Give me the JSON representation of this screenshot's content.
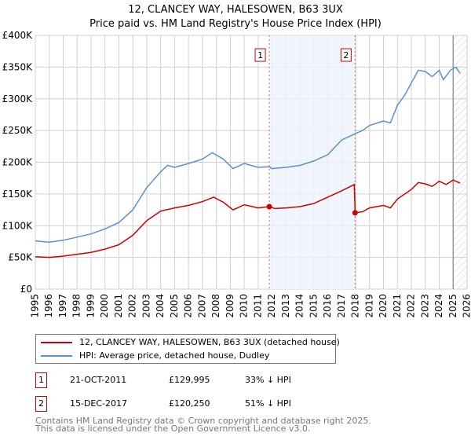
{
  "chart_data": {
    "type": "line",
    "title": "12, CLANCEY WAY, HALESOWEN, B63 3UX",
    "subtitle": "Price paid vs. HM Land Registry's House Price Index (HPI)",
    "xlim": [
      1995,
      2026
    ],
    "ylim": [
      0,
      400000
    ],
    "yticks": [
      0,
      50000,
      100000,
      150000,
      200000,
      250000,
      300000,
      350000,
      400000
    ],
    "ytick_labels": [
      "£0",
      "£50K",
      "£100K",
      "£150K",
      "£200K",
      "£250K",
      "£300K",
      "£350K",
      "£400K"
    ],
    "xticks": [
      1995,
      1996,
      1997,
      1998,
      1999,
      2000,
      2001,
      2002,
      2003,
      2004,
      2005,
      2006,
      2007,
      2008,
      2009,
      2010,
      2011,
      2012,
      2013,
      2014,
      2015,
      2016,
      2017,
      2018,
      2019,
      2020,
      2021,
      2022,
      2023,
      2024,
      2025,
      2026
    ],
    "grid": true,
    "legend_placement": "below",
    "series": [
      {
        "name": "12, CLANCEY WAY, HALESOWEN, B63 3UX (detached house)",
        "color": "#cc0000",
        "x": [
          1995,
          1996,
          1997,
          1998,
          1999,
          2000,
          2001,
          2002,
          2003,
          2004,
          2005,
          2006,
          2007,
          2007.8,
          2008.5,
          2009.2,
          2010,
          2011,
          2011.8,
          2012.2,
          2013,
          2014,
          2015,
          2016,
          2017,
          2017.9,
          2017.96,
          2018.5,
          2019,
          2020,
          2020.5,
          2021,
          2022,
          2022.5,
          2023,
          2023.5,
          2024,
          2024.5,
          2025,
          2025.5
        ],
        "y": [
          51000,
          50000,
          52000,
          55000,
          58000,
          63000,
          70000,
          85000,
          108000,
          123000,
          128000,
          132000,
          138000,
          145000,
          137000,
          125000,
          133000,
          128000,
          129995,
          127000,
          128000,
          130000,
          135000,
          145000,
          155000,
          165000,
          120250,
          122000,
          128000,
          132000,
          128000,
          142000,
          157000,
          168000,
          166000,
          162000,
          170000,
          165000,
          172000,
          167000
        ]
      },
      {
        "name": "HPI: Average price, detached house, Dudley",
        "color": "#5b8fd4",
        "x": [
          1995,
          1996,
          1997,
          1998,
          1999,
          2000,
          2001,
          2002,
          2003,
          2004,
          2004.5,
          2005,
          2006,
          2007,
          2007.7,
          2008.5,
          2009.2,
          2010,
          2011,
          2011.8,
          2012,
          2013,
          2014,
          2015,
          2016,
          2017,
          2017.96,
          2018.5,
          2019,
          2020,
          2020.5,
          2021,
          2021.5,
          2022,
          2022.5,
          2023,
          2023.5,
          2024,
          2024.3,
          2024.8,
          2025.2,
          2025.5
        ],
        "y": [
          76000,
          74000,
          77000,
          82000,
          87000,
          95000,
          105000,
          125000,
          160000,
          185000,
          195000,
          192000,
          198000,
          205000,
          215000,
          205000,
          190000,
          198000,
          192000,
          193000,
          190000,
          192000,
          195000,
          202000,
          212000,
          235000,
          245000,
          250000,
          258000,
          265000,
          262000,
          290000,
          305000,
          325000,
          345000,
          343000,
          335000,
          345000,
          330000,
          345000,
          350000,
          340000
        ]
      }
    ],
    "annotations": [
      {
        "label": "1",
        "x": 2011.8,
        "date": "21-OCT-2011",
        "price": "£129,995",
        "hpi": "33% ↓ HPI"
      },
      {
        "label": "2",
        "x": 2017.96,
        "date": "15-DEC-2017",
        "price": "£120,250",
        "hpi": "51% ↓ HPI"
      }
    ],
    "shaded_range": [
      2011.8,
      2017.96
    ],
    "forecast_from": 2025.0
  },
  "footer": {
    "line1": "Contains HM Land Registry data © Crown copyright and database right 2025.",
    "line2": "This data is licensed under the Open Government Licence v3.0."
  }
}
